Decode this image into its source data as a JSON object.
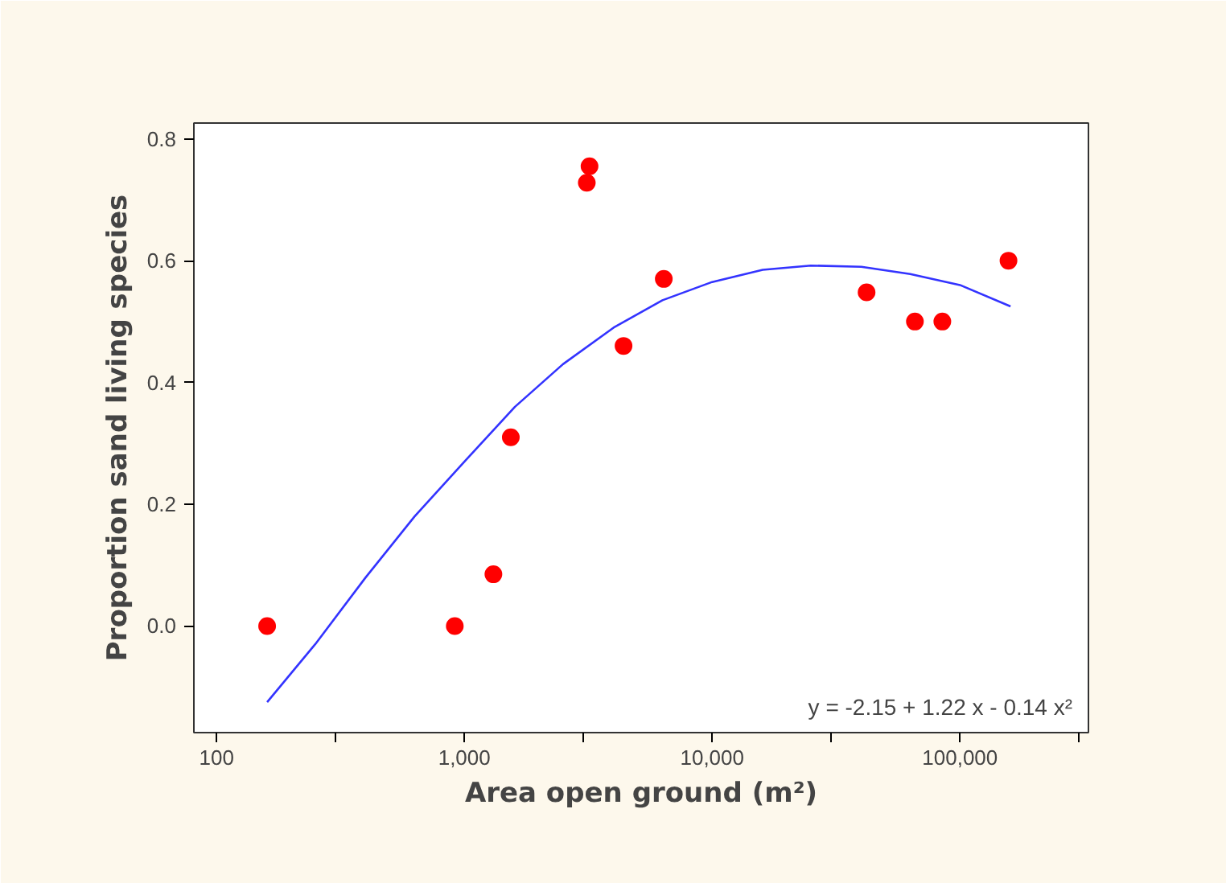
{
  "chart_data": {
    "type": "scatter",
    "xlabel": "Area open ground (m²)",
    "ylabel": "Proportion sand living species",
    "log": "x",
    "xlim": [
      81,
      330000
    ],
    "ylim": [
      -0.175,
      0.826
    ],
    "xticks": [
      100,
      {
        "value": 300,
        "label": null
      },
      {
        "value": 1000,
        "label": "1,000"
      },
      {
        "value": 3000,
        "label": null
      },
      {
        "value": 10000,
        "label": "10,000"
      },
      {
        "value": 30000,
        "label": null
      },
      {
        "value": 100000,
        "label": "100,000"
      },
      {
        "value": 300000,
        "label": null
      }
    ],
    "yticks": [
      {
        "value": 0,
        "label": "0.0"
      },
      {
        "value": 0.2,
        "label": "0.2"
      },
      {
        "value": 0.4,
        "label": "0.4"
      },
      {
        "value": 0.6,
        "label": "0.6"
      },
      {
        "value": 0.8,
        "label": "0.8"
      }
    ],
    "grid": false,
    "annotations": [
      "y = -2.15 + 1.22 x - 0.14 x²"
    ],
    "series": [
      {
        "marker": "circle",
        "color": "#ff0000",
        "x": [
          160,
          915,
          1310,
          1540,
          3120,
          3200,
          4390,
          6380,
          42000,
          65800,
          84900,
          157000
        ],
        "values": [
          0,
          0,
          0.085,
          0.31,
          0.728,
          0.755,
          0.46,
          0.57,
          0.548,
          0.5,
          0.5,
          0.6
        ]
      },
      {
        "type": "line",
        "color": "#3333ff",
        "line_style": "solid",
        "x": [
          160,
          250,
          400,
          630,
          1000,
          1600,
          2500,
          4000,
          6300,
          10000,
          16000,
          25000,
          40000,
          63000,
          100000,
          160000
        ],
        "values": [
          -0.125,
          -0.03,
          0.08,
          0.18,
          0.27,
          0.36,
          0.43,
          0.49,
          0.535,
          0.565,
          0.585,
          0.592,
          0.59,
          0.578,
          0.56,
          0.525
        ]
      }
    ]
  }
}
